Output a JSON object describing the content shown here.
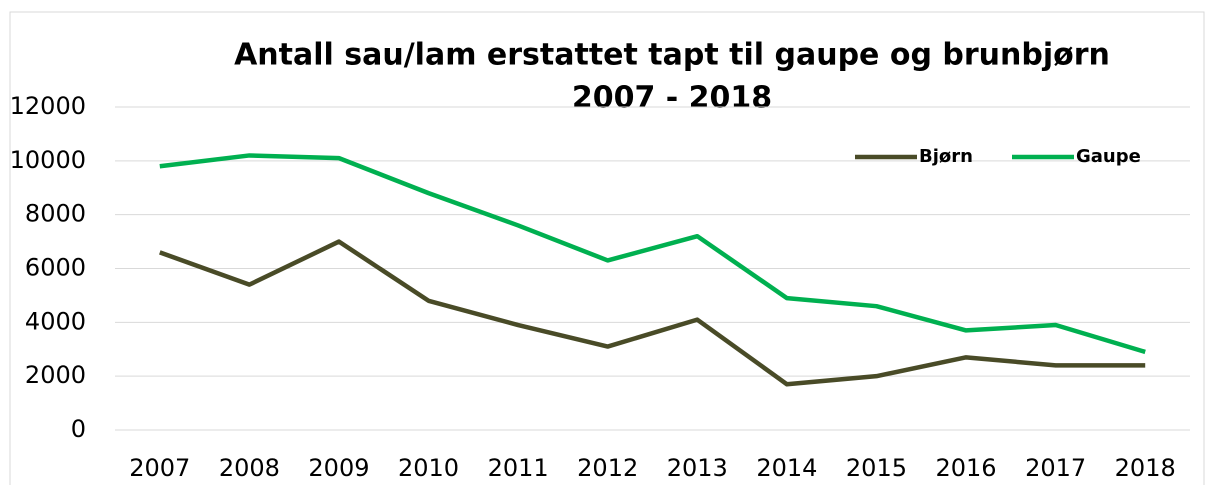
{
  "chart_data": {
    "type": "line",
    "title": [
      "Antall sau/lam erstattet tapt til gaupe og brunbjørn",
      "2007 - 2018"
    ],
    "categories": [
      "2007",
      "2008",
      "2009",
      "2010",
      "2011",
      "2012",
      "2013",
      "2014",
      "2015",
      "2016",
      "2017",
      "2018"
    ],
    "series": [
      {
        "name": "Bjørn",
        "color": "#494b27",
        "values": [
          6600,
          5400,
          7000,
          4800,
          3900,
          3100,
          4100,
          1700,
          2000,
          2700,
          2400,
          2400
        ]
      },
      {
        "name": "Gaupe",
        "color": "#00b050",
        "values": [
          9800,
          10200,
          10100,
          8800,
          7600,
          6300,
          7200,
          4900,
          4600,
          3700,
          3900,
          2900
        ]
      }
    ],
    "ylim": [
      0,
      12000
    ],
    "yticks": [
      0,
      2000,
      4000,
      6000,
      8000,
      10000,
      12000
    ],
    "grid": true,
    "legend": "top-right"
  }
}
